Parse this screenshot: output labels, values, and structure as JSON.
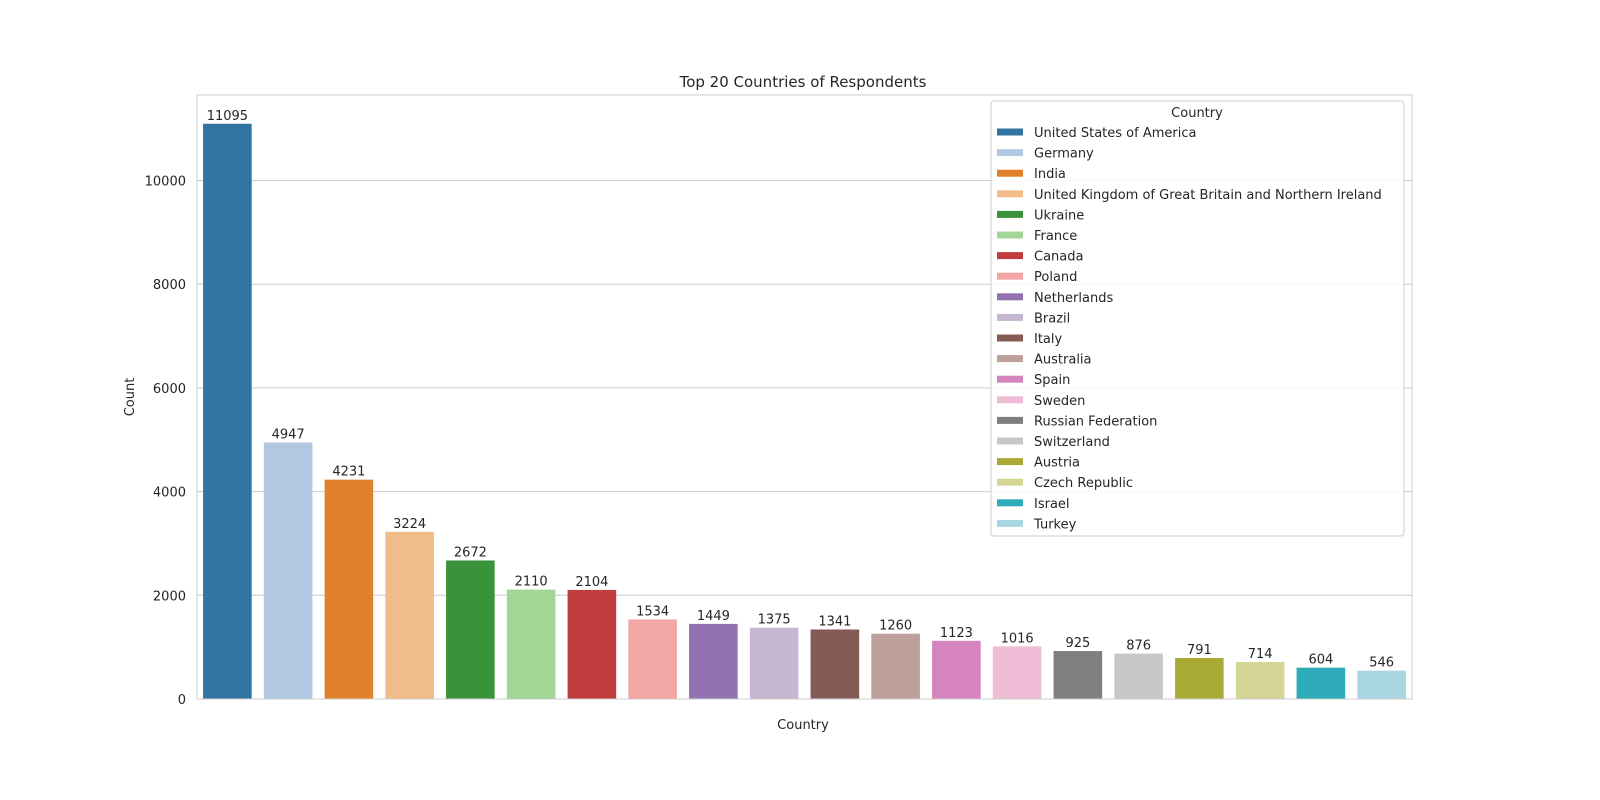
{
  "chart_data": {
    "type": "bar",
    "title": "Top 20 Countries of Respondents",
    "xlabel": "Country",
    "ylabel": "Count",
    "ylim": [
      0,
      11650
    ],
    "yticks": [
      0,
      2000,
      4000,
      6000,
      8000,
      10000
    ],
    "grid": true,
    "legend": {
      "title": "Country",
      "placement": "top-right"
    },
    "categories": [
      "United States of America",
      "Germany",
      "India",
      "United Kingdom of Great Britain and Northern Ireland",
      "Ukraine",
      "France",
      "Canada",
      "Poland",
      "Netherlands",
      "Brazil",
      "Italy",
      "Australia",
      "Spain",
      "Sweden",
      "Russian Federation",
      "Switzerland",
      "Austria",
      "Czech Republic",
      "Israel",
      "Turkey"
    ],
    "values": [
      11095,
      4947,
      4231,
      3224,
      2672,
      2110,
      2104,
      1534,
      1449,
      1375,
      1341,
      1260,
      1123,
      1016,
      925,
      876,
      791,
      714,
      604,
      546
    ],
    "colors": [
      "#3274a1",
      "#b2c7e2",
      "#e1812c",
      "#efbc8a",
      "#3a923a",
      "#a1d696",
      "#c03d3e",
      "#f2a7a6",
      "#9372b2",
      "#c5b6d2",
      "#845b53",
      "#bda099",
      "#d684bd",
      "#efbcd5",
      "#7f7f7f",
      "#c7c7c7",
      "#a9aa35",
      "#d5d596",
      "#2eabb8",
      "#a9d6e0"
    ]
  }
}
